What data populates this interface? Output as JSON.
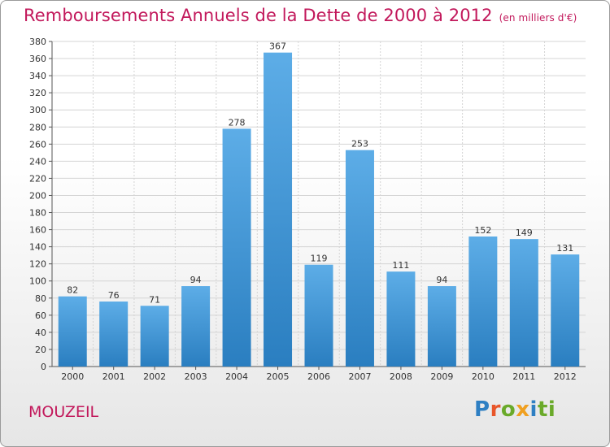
{
  "header": {
    "title": "Remboursements Annuels de la Dette de 2000 à 2012",
    "subtitle": "(en milliers d'€)"
  },
  "footer": {
    "place": "MOUZEIL",
    "logo_text": "Proxiti"
  },
  "colors": {
    "bar_top": "#5dade7",
    "bar_bottom": "#2a7ec0",
    "title": "#c2185b"
  },
  "chart_data": {
    "type": "bar",
    "categories": [
      "2000",
      "2001",
      "2002",
      "2003",
      "2004",
      "2005",
      "2006",
      "2007",
      "2008",
      "2009",
      "2010",
      "2011",
      "2012"
    ],
    "values": [
      82,
      76,
      71,
      94,
      278,
      367,
      119,
      253,
      111,
      94,
      152,
      149,
      131
    ],
    "title": "Remboursements Annuels de la Dette de 2000 à 2012",
    "ylim": [
      0,
      380
    ],
    "ytick_step": 20,
    "grid": true,
    "data_labels": true
  }
}
